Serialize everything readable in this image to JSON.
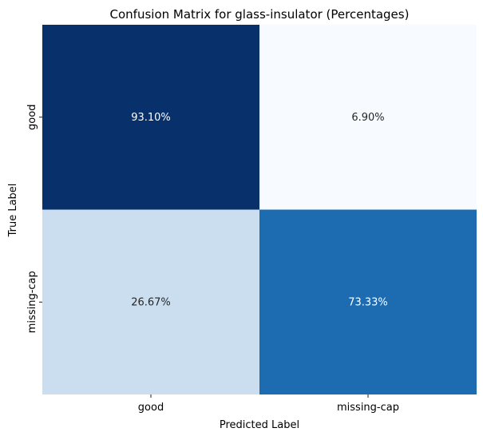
{
  "chart_data": {
    "type": "heatmap",
    "title": "Confusion Matrix for glass-insulator (Percentages)",
    "xlabel": "Predicted Label",
    "ylabel": "True Label",
    "x_categories": [
      "good",
      "missing-cap"
    ],
    "y_categories": [
      "good",
      "missing-cap"
    ],
    "values": [
      [
        93.1,
        6.9
      ],
      [
        26.67,
        73.33
      ]
    ],
    "cell_labels": [
      [
        "93.10%",
        "6.90%"
      ],
      [
        "26.67%",
        "73.33%"
      ]
    ],
    "colormap": "Blues",
    "colorbar": false,
    "colors": {
      "low": "#f7fbff",
      "high": "#08306b",
      "text_dark": "#262626",
      "text_light": "#ffffff"
    }
  }
}
